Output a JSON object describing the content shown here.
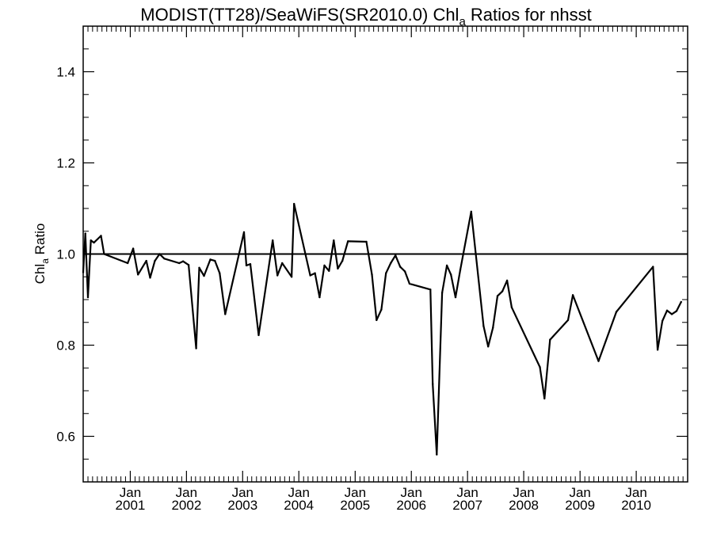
{
  "chart_data": {
    "type": "line",
    "title": {
      "prefix": "MODIST(TT28)/SeaWiFS(SR2010.0)  Chl",
      "subscript": "a",
      "suffix": " Ratios for nhsst"
    },
    "ylabel": {
      "prefix": "Chl",
      "subscript": "a",
      "suffix": " Ratio"
    },
    "xlabel": "",
    "xlim": [
      "2000-03-01",
      "2010-12-01"
    ],
    "ylim": [
      0.5,
      1.5
    ],
    "yticks": [
      0.6,
      0.8,
      1.0,
      1.2,
      1.4
    ],
    "ytick_labels": [
      "0.6",
      "0.8",
      "1.0",
      "1.2",
      "1.4"
    ],
    "xticks": [
      {
        "date": "2001-01-01",
        "month": "Jan",
        "year": "2001"
      },
      {
        "date": "2002-01-01",
        "month": "Jan",
        "year": "2002"
      },
      {
        "date": "2003-01-01",
        "month": "Jan",
        "year": "2003"
      },
      {
        "date": "2004-01-01",
        "month": "Jan",
        "year": "2004"
      },
      {
        "date": "2005-01-01",
        "month": "Jan",
        "year": "2005"
      },
      {
        "date": "2006-01-01",
        "month": "Jan",
        "year": "2006"
      },
      {
        "date": "2007-01-01",
        "month": "Jan",
        "year": "2007"
      },
      {
        "date": "2008-01-01",
        "month": "Jan",
        "year": "2008"
      },
      {
        "date": "2009-01-01",
        "month": "Jan",
        "year": "2009"
      },
      {
        "date": "2010-01-01",
        "month": "Jan",
        "year": "2010"
      }
    ],
    "reference_line": 1.0,
    "grid": false,
    "series": [
      {
        "color": "#000000",
        "points": [
          [
            "2000-03-01",
            0.96
          ],
          [
            "2000-03-15",
            1.045
          ],
          [
            "2000-04-01",
            0.905
          ],
          [
            "2000-04-20",
            1.03
          ],
          [
            "2000-05-10",
            1.025
          ],
          [
            "2000-06-25",
            1.04
          ],
          [
            "2000-07-15",
            1.0
          ],
          [
            "2000-12-15",
            0.98
          ],
          [
            "2001-01-20",
            1.012
          ],
          [
            "2001-02-20",
            0.955
          ],
          [
            "2001-04-15",
            0.985
          ],
          [
            "2001-05-10",
            0.948
          ],
          [
            "2001-06-10",
            0.985
          ],
          [
            "2001-07-10",
            1.0
          ],
          [
            "2001-08-10",
            0.99
          ],
          [
            "2001-11-15",
            0.98
          ],
          [
            "2001-12-10",
            0.984
          ],
          [
            "2002-01-15",
            0.976
          ],
          [
            "2002-03-05",
            0.793
          ],
          [
            "2002-03-25",
            0.97
          ],
          [
            "2002-04-25",
            0.952
          ],
          [
            "2002-06-05",
            0.988
          ],
          [
            "2002-07-05",
            0.985
          ],
          [
            "2002-08-05",
            0.958
          ],
          [
            "2002-09-10",
            0.868
          ],
          [
            "2003-01-10",
            1.048
          ],
          [
            "2003-01-25",
            0.975
          ],
          [
            "2003-02-20",
            0.978
          ],
          [
            "2003-04-15",
            0.822
          ],
          [
            "2003-07-15",
            1.03
          ],
          [
            "2003-08-15",
            0.953
          ],
          [
            "2003-09-15",
            0.98
          ],
          [
            "2003-11-15",
            0.95
          ],
          [
            "2003-12-01",
            1.11
          ],
          [
            "2004-03-15",
            0.953
          ],
          [
            "2004-04-15",
            0.958
          ],
          [
            "2004-05-15",
            0.905
          ],
          [
            "2004-06-15",
            0.975
          ],
          [
            "2004-07-15",
            0.963
          ],
          [
            "2004-08-15",
            1.03
          ],
          [
            "2004-09-10",
            0.968
          ],
          [
            "2004-10-10",
            0.985
          ],
          [
            "2004-11-15",
            1.028
          ],
          [
            "2005-03-15",
            1.027
          ],
          [
            "2005-04-20",
            0.955
          ],
          [
            "2005-05-20",
            0.855
          ],
          [
            "2005-06-20",
            0.878
          ],
          [
            "2005-07-20",
            0.958
          ],
          [
            "2005-08-20",
            0.98
          ],
          [
            "2005-09-20",
            0.997
          ],
          [
            "2005-10-20",
            0.972
          ],
          [
            "2005-11-20",
            0.962
          ],
          [
            "2005-12-20",
            0.935
          ],
          [
            "2006-05-05",
            0.922
          ],
          [
            "2006-05-20",
            0.715
          ],
          [
            "2006-06-15",
            0.56
          ],
          [
            "2006-07-20",
            0.915
          ],
          [
            "2006-08-20",
            0.975
          ],
          [
            "2006-09-15",
            0.955
          ],
          [
            "2006-10-15",
            0.905
          ],
          [
            "2006-11-15",
            0.965
          ],
          [
            "2007-01-25",
            1.093
          ],
          [
            "2007-04-15",
            0.842
          ],
          [
            "2007-05-15",
            0.797
          ],
          [
            "2007-06-15",
            0.838
          ],
          [
            "2007-07-15",
            0.908
          ],
          [
            "2007-08-15",
            0.918
          ],
          [
            "2007-09-15",
            0.942
          ],
          [
            "2007-10-15",
            0.883
          ],
          [
            "2008-04-15",
            0.752
          ],
          [
            "2008-05-15",
            0.683
          ],
          [
            "2008-06-20",
            0.812
          ],
          [
            "2008-10-15",
            0.855
          ],
          [
            "2008-11-15",
            0.91
          ],
          [
            "2009-05-01",
            0.765
          ],
          [
            "2009-08-25",
            0.873
          ],
          [
            "2010-04-20",
            0.972
          ],
          [
            "2010-05-20",
            0.79
          ],
          [
            "2010-06-20",
            0.853
          ],
          [
            "2010-07-20",
            0.876
          ],
          [
            "2010-08-20",
            0.868
          ],
          [
            "2010-09-20",
            0.875
          ],
          [
            "2010-10-20",
            0.895
          ]
        ]
      }
    ]
  }
}
